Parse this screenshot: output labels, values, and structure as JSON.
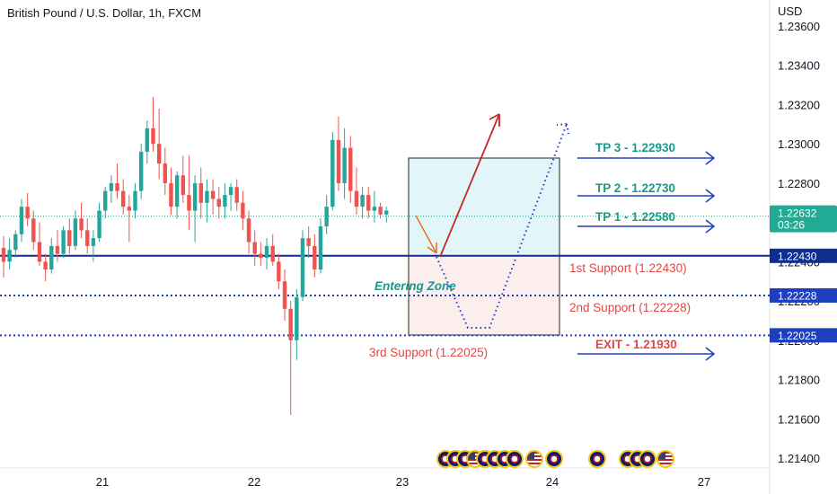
{
  "chart_data": {
    "type": "candlestick",
    "title": "British Pound / U.S. Dollar, 1h, FXCM",
    "currency": "USD",
    "y_ticks": [
      "1.23600",
      "1.23400",
      "1.23200",
      "1.23000",
      "1.22800",
      "1.22600",
      "1.22400",
      "1.22200",
      "1.22000",
      "1.21800",
      "1.21600",
      "1.21400"
    ],
    "ylim": [
      1.2132,
      1.2368
    ],
    "x_ticks": [
      "21",
      "22",
      "23",
      "24",
      "27"
    ],
    "candles": [
      {
        "o": 1.2247,
        "h": 1.2253,
        "l": 1.2232,
        "c": 1.224
      },
      {
        "o": 1.224,
        "h": 1.2252,
        "l": 1.2236,
        "c": 1.2246
      },
      {
        "o": 1.2246,
        "h": 1.2256,
        "l": 1.2242,
        "c": 1.2254
      },
      {
        "o": 1.2254,
        "h": 1.2272,
        "l": 1.225,
        "c": 1.2268
      },
      {
        "o": 1.2268,
        "h": 1.2275,
        "l": 1.2258,
        "c": 1.2262
      },
      {
        "o": 1.2262,
        "h": 1.2266,
        "l": 1.2246,
        "c": 1.225
      },
      {
        "o": 1.225,
        "h": 1.226,
        "l": 1.2238,
        "c": 1.224
      },
      {
        "o": 1.224,
        "h": 1.2244,
        "l": 1.223,
        "c": 1.2236
      },
      {
        "o": 1.2236,
        "h": 1.2252,
        "l": 1.2234,
        "c": 1.2248
      },
      {
        "o": 1.2248,
        "h": 1.2256,
        "l": 1.224,
        "c": 1.2244
      },
      {
        "o": 1.2244,
        "h": 1.2258,
        "l": 1.2242,
        "c": 1.2256
      },
      {
        "o": 1.2256,
        "h": 1.2262,
        "l": 1.2244,
        "c": 1.2248
      },
      {
        "o": 1.2248,
        "h": 1.2266,
        "l": 1.2246,
        "c": 1.2262
      },
      {
        "o": 1.2262,
        "h": 1.227,
        "l": 1.2252,
        "c": 1.2256
      },
      {
        "o": 1.2256,
        "h": 1.2262,
        "l": 1.2244,
        "c": 1.2248
      },
      {
        "o": 1.2248,
        "h": 1.2256,
        "l": 1.224,
        "c": 1.2252
      },
      {
        "o": 1.2252,
        "h": 1.227,
        "l": 1.225,
        "c": 1.2266
      },
      {
        "o": 1.2266,
        "h": 1.2278,
        "l": 1.2262,
        "c": 1.2276
      },
      {
        "o": 1.2276,
        "h": 1.2284,
        "l": 1.227,
        "c": 1.228
      },
      {
        "o": 1.228,
        "h": 1.229,
        "l": 1.2272,
        "c": 1.2276
      },
      {
        "o": 1.2276,
        "h": 1.2282,
        "l": 1.2264,
        "c": 1.2268
      },
      {
        "o": 1.2268,
        "h": 1.2274,
        "l": 1.225,
        "c": 1.2266
      },
      {
        "o": 1.2266,
        "h": 1.228,
        "l": 1.2262,
        "c": 1.2276
      },
      {
        "o": 1.2276,
        "h": 1.23,
        "l": 1.2272,
        "c": 1.2296
      },
      {
        "o": 1.2296,
        "h": 1.2312,
        "l": 1.229,
        "c": 1.2308
      },
      {
        "o": 1.2308,
        "h": 1.2324,
        "l": 1.2296,
        "c": 1.23
      },
      {
        "o": 1.23,
        "h": 1.2318,
        "l": 1.2282,
        "c": 1.229
      },
      {
        "o": 1.229,
        "h": 1.2298,
        "l": 1.2274,
        "c": 1.228
      },
      {
        "o": 1.228,
        "h": 1.2288,
        "l": 1.2264,
        "c": 1.2268
      },
      {
        "o": 1.2268,
        "h": 1.2286,
        "l": 1.2262,
        "c": 1.2284
      },
      {
        "o": 1.2284,
        "h": 1.2294,
        "l": 1.227,
        "c": 1.2274
      },
      {
        "o": 1.2274,
        "h": 1.2294,
        "l": 1.2256,
        "c": 1.2266
      },
      {
        "o": 1.2266,
        "h": 1.2284,
        "l": 1.225,
        "c": 1.228
      },
      {
        "o": 1.228,
        "h": 1.2288,
        "l": 1.2262,
        "c": 1.227
      },
      {
        "o": 1.227,
        "h": 1.2282,
        "l": 1.226,
        "c": 1.2276
      },
      {
        "o": 1.2276,
        "h": 1.2282,
        "l": 1.2264,
        "c": 1.2272
      },
      {
        "o": 1.2272,
        "h": 1.2278,
        "l": 1.2262,
        "c": 1.2268
      },
      {
        "o": 1.2268,
        "h": 1.228,
        "l": 1.2262,
        "c": 1.2274
      },
      {
        "o": 1.2274,
        "h": 1.228,
        "l": 1.2266,
        "c": 1.2278
      },
      {
        "o": 1.2278,
        "h": 1.2282,
        "l": 1.2266,
        "c": 1.227
      },
      {
        "o": 1.227,
        "h": 1.2276,
        "l": 1.2256,
        "c": 1.2262
      },
      {
        "o": 1.2262,
        "h": 1.2266,
        "l": 1.2244,
        "c": 1.225
      },
      {
        "o": 1.225,
        "h": 1.2256,
        "l": 1.2238,
        "c": 1.2244
      },
      {
        "o": 1.2244,
        "h": 1.225,
        "l": 1.2238,
        "c": 1.2242
      },
      {
        "o": 1.2242,
        "h": 1.2252,
        "l": 1.2236,
        "c": 1.2248
      },
      {
        "o": 1.2248,
        "h": 1.2254,
        "l": 1.2238,
        "c": 1.224
      },
      {
        "o": 1.224,
        "h": 1.2244,
        "l": 1.2226,
        "c": 1.223
      },
      {
        "o": 1.223,
        "h": 1.2236,
        "l": 1.221,
        "c": 1.2216
      },
      {
        "o": 1.2216,
        "h": 1.222,
        "l": 1.2162,
        "c": 1.22
      },
      {
        "o": 1.22,
        "h": 1.2226,
        "l": 1.219,
        "c": 1.2222
      },
      {
        "o": 1.2222,
        "h": 1.2256,
        "l": 1.222,
        "c": 1.2252
      },
      {
        "o": 1.2252,
        "h": 1.2258,
        "l": 1.2242,
        "c": 1.2248
      },
      {
        "o": 1.2248,
        "h": 1.2254,
        "l": 1.2232,
        "c": 1.2236
      },
      {
        "o": 1.2236,
        "h": 1.2262,
        "l": 1.2234,
        "c": 1.2258
      },
      {
        "o": 1.2258,
        "h": 1.2274,
        "l": 1.2254,
        "c": 1.2268
      },
      {
        "o": 1.2268,
        "h": 1.2306,
        "l": 1.2266,
        "c": 1.2302
      },
      {
        "o": 1.2302,
        "h": 1.2314,
        "l": 1.2276,
        "c": 1.228
      },
      {
        "o": 1.228,
        "h": 1.2308,
        "l": 1.2272,
        "c": 1.2298
      },
      {
        "o": 1.2298,
        "h": 1.2304,
        "l": 1.227,
        "c": 1.2276
      },
      {
        "o": 1.2276,
        "h": 1.2288,
        "l": 1.2264,
        "c": 1.2268
      },
      {
        "o": 1.2268,
        "h": 1.2278,
        "l": 1.2262,
        "c": 1.2274
      },
      {
        "o": 1.2274,
        "h": 1.2278,
        "l": 1.2262,
        "c": 1.2266
      },
      {
        "o": 1.2266,
        "h": 1.2276,
        "l": 1.226,
        "c": 1.2268
      },
      {
        "o": 1.2268,
        "h": 1.227,
        "l": 1.2262,
        "c": 1.2264
      },
      {
        "o": 1.2264,
        "h": 1.2268,
        "l": 1.226,
        "c": 1.2266
      }
    ],
    "horizontal_levels": [
      {
        "name": "1st Support",
        "value": 1.2243,
        "label": "1.22430",
        "style": "solid",
        "color": "#0d2d8f"
      },
      {
        "name": "2nd Support",
        "value": 1.22228,
        "label": "1.22228",
        "style": "dotted",
        "color": "#1e3fbf"
      },
      {
        "name": "3rd Support",
        "value": 1.22025,
        "label": "1.22025",
        "style": "dotted",
        "color": "#1e3fbf"
      }
    ],
    "current_price": {
      "value": 1.22632,
      "label": "1.22632",
      "countdown": "03:26",
      "color": "#22ab94"
    },
    "annotations": {
      "tp3": "TP 3 - 1.22930",
      "tp2": "TP 2 - 1.22730",
      "tp1": "TP 1 - 1.22580",
      "support1": "1st Support (1.22430)",
      "support2": "2nd Support (1.22228)",
      "support3": "3rd Support (1.22025)",
      "exit": "EXIT - 1.21930",
      "entering_zone": "Entering Zone"
    },
    "colors": {
      "up": "#26a69a",
      "down": "#ef5350",
      "profit_zone": "#e2f6f9",
      "loss_zone": "#fdeeee",
      "arrow_blue": "#1e3fbf",
      "arrow_red": "#c62828",
      "arrow_orange": "#e8711a",
      "tp_text": "#1a9a8a",
      "support_text": "#e04848"
    },
    "event_flags": [
      "uk",
      "uk",
      "uk",
      "us",
      "uk",
      "uk",
      "uk",
      "uk",
      "us",
      "uk",
      "uk",
      "uk",
      "uk",
      "uk",
      "us"
    ]
  }
}
